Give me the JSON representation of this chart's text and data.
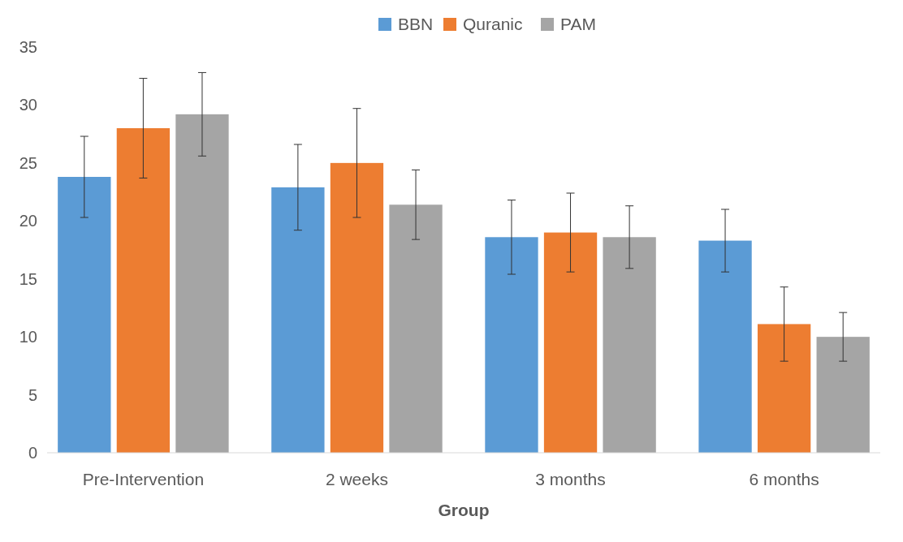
{
  "chart_data": {
    "type": "bar",
    "xlabel": "Group",
    "categories": [
      "Pre-Intervention",
      "2 weeks",
      "3 months",
      "6 months"
    ],
    "series": [
      {
        "name": "BBN",
        "color": "#5b9bd5",
        "values": [
          23.8,
          22.9,
          18.6,
          18.3
        ],
        "errors": [
          3.5,
          3.7,
          3.2,
          2.7
        ]
      },
      {
        "name": "Quranic",
        "color": "#ed7d31",
        "values": [
          28.0,
          25.0,
          19.0,
          11.1
        ],
        "errors": [
          4.3,
          4.7,
          3.4,
          3.2
        ]
      },
      {
        "name": "PAM",
        "color": "#a5a5a5",
        "values": [
          29.2,
          21.4,
          18.6,
          10.0
        ],
        "errors": [
          3.6,
          3.0,
          2.7,
          2.1
        ]
      }
    ],
    "ylim": [
      0,
      35
    ],
    "yticks": [
      0,
      5,
      10,
      15,
      20,
      25,
      30,
      35
    ],
    "grid": false,
    "legend": "top"
  }
}
